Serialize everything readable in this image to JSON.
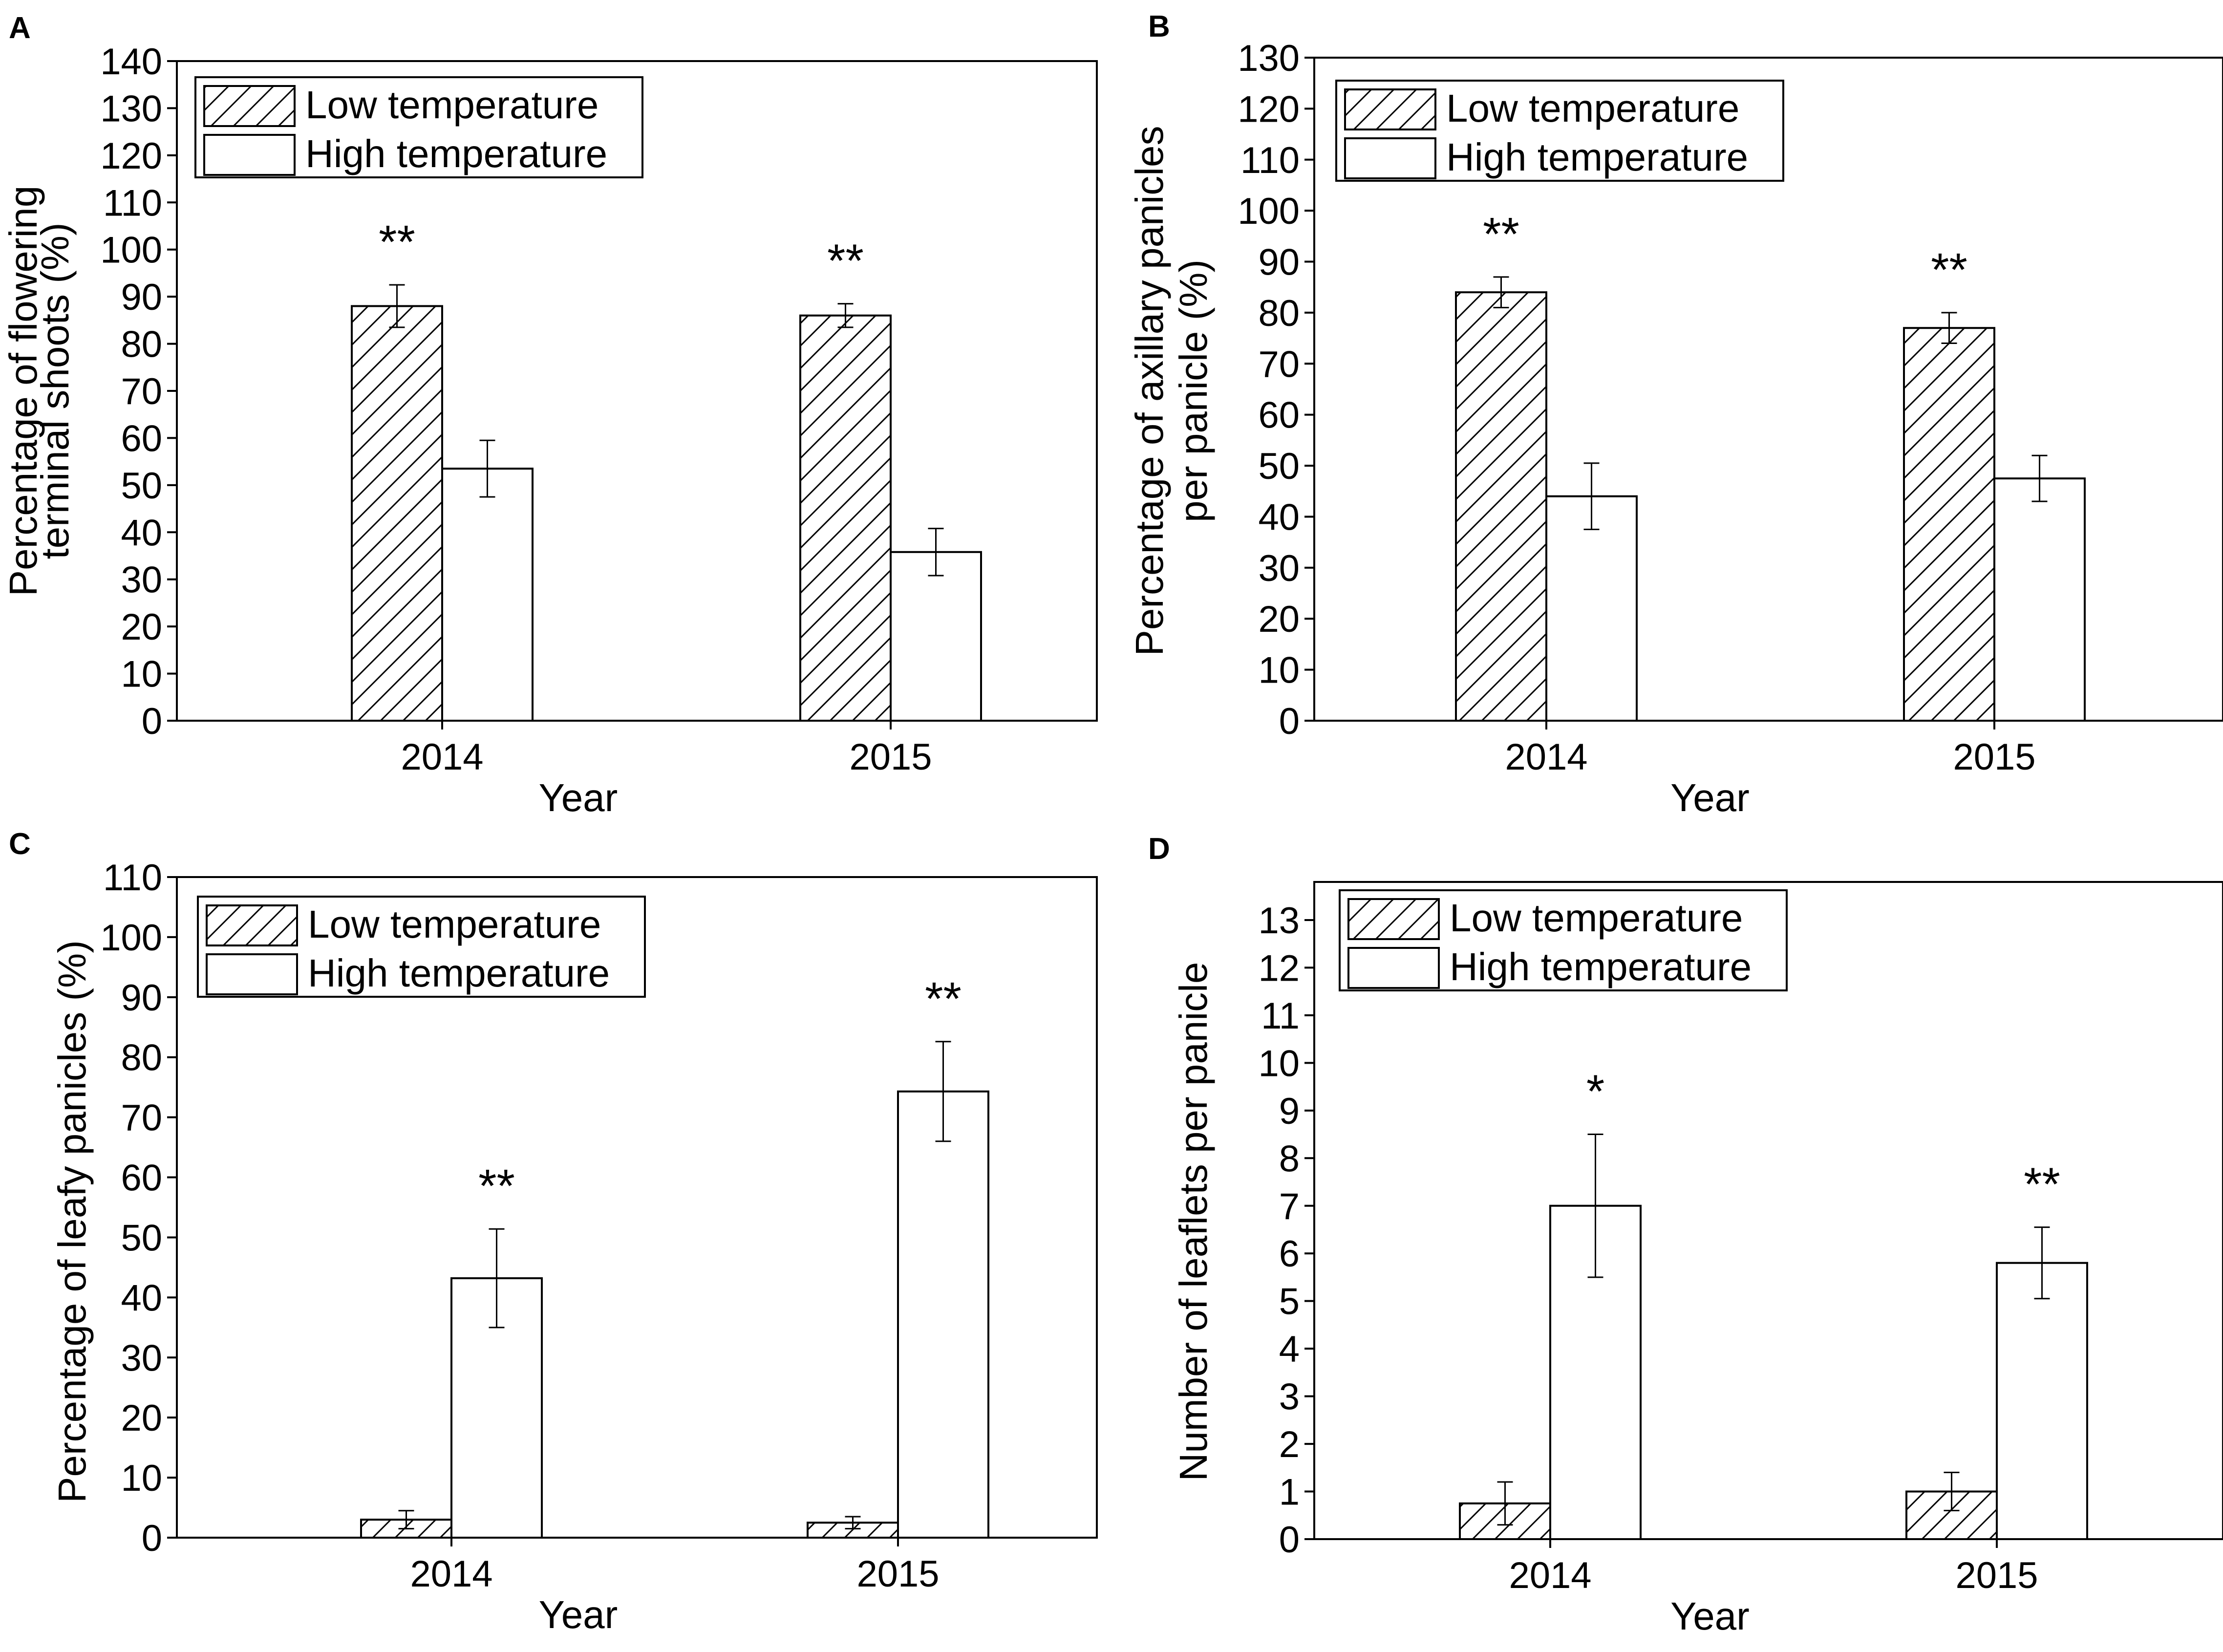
{
  "chart_data": [
    {
      "panel": "A",
      "type": "bar",
      "categories": [
        "2014",
        "2015"
      ],
      "xlabel": "Year",
      "ylabel_lines": [
        "Percentage of flowering",
        "terminal shoots (%)"
      ],
      "ylim": [
        0,
        140
      ],
      "ytick_step": 10,
      "legend": [
        "Low temperature",
        "High temperature"
      ],
      "series": [
        {
          "name": "Low temperature",
          "pattern": "hatched",
          "values": [
            88,
            86
          ],
          "errors": [
            4.5,
            2.5
          ]
        },
        {
          "name": "High temperature",
          "pattern": "open",
          "values": [
            53.5,
            35.8
          ],
          "errors": [
            6,
            5
          ]
        }
      ],
      "significance": [
        {
          "category": "2014",
          "series": "Low temperature",
          "label": "**"
        },
        {
          "category": "2015",
          "series": "Low temperature",
          "label": "**"
        }
      ]
    },
    {
      "panel": "B",
      "type": "bar",
      "categories": [
        "2014",
        "2015"
      ],
      "xlabel": "Year",
      "ylabel_lines": [
        "Percentage of axillary panicles",
        "per panicle (%)"
      ],
      "ylim": [
        0,
        130
      ],
      "ytick_step": 10,
      "legend": [
        "Low temperature",
        "High temperature"
      ],
      "series": [
        {
          "name": "Low temperature",
          "pattern": "hatched",
          "values": [
            84,
            77
          ],
          "errors": [
            3,
            3
          ]
        },
        {
          "name": "High temperature",
          "pattern": "open",
          "values": [
            44,
            47.5
          ],
          "errors": [
            6.5,
            4.5
          ]
        }
      ],
      "significance": [
        {
          "category": "2014",
          "series": "Low temperature",
          "label": "**"
        },
        {
          "category": "2015",
          "series": "Low temperature",
          "label": "**"
        }
      ]
    },
    {
      "panel": "C",
      "type": "bar",
      "categories": [
        "2014",
        "2015"
      ],
      "xlabel": "Year",
      "ylabel_lines": [
        "Percentage of leafy panicles (%)"
      ],
      "ylim": [
        0,
        110
      ],
      "ytick_step": 10,
      "legend": [
        "Low temperature",
        "High temperature"
      ],
      "series": [
        {
          "name": "Low temperature",
          "pattern": "hatched",
          "values": [
            3,
            2.5
          ],
          "errors": [
            1.5,
            1.0
          ]
        },
        {
          "name": "High temperature",
          "pattern": "open",
          "values": [
            43.2,
            74.3
          ],
          "errors": [
            8.2,
            8.3
          ]
        }
      ],
      "significance": [
        {
          "category": "2014",
          "series": "High temperature",
          "label": "**"
        },
        {
          "category": "2015",
          "series": "High temperature",
          "label": "**"
        }
      ]
    },
    {
      "panel": "D",
      "type": "bar",
      "categories": [
        "2014",
        "2015"
      ],
      "xlabel": "Year",
      "ylabel_lines": [
        "Number of leaflets per panicle"
      ],
      "ylim": [
        0,
        13.8
      ],
      "ytick_step": 1,
      "ytick_max": 13,
      "legend": [
        "Low temperature",
        "High temperature"
      ],
      "series": [
        {
          "name": "Low temperature",
          "pattern": "hatched",
          "values": [
            0.75,
            1.0
          ],
          "errors": [
            0.45,
            0.4
          ]
        },
        {
          "name": "High temperature",
          "pattern": "open",
          "values": [
            7.0,
            5.8
          ],
          "errors": [
            1.5,
            0.75
          ]
        }
      ],
      "significance": [
        {
          "category": "2014",
          "series": "High temperature",
          "label": "*"
        },
        {
          "category": "2015",
          "series": "High temperature",
          "label": "**"
        }
      ]
    }
  ]
}
